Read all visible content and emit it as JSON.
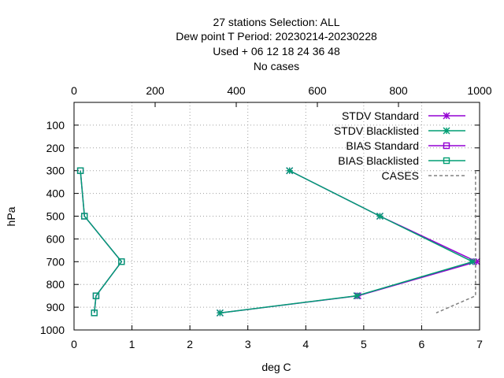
{
  "title_lines": [
    "27 stations Selection: ALL",
    "Dew point T  Period: 20230214-20230228",
    "Used   + 06 12 18 24 36 48",
    "No cases"
  ],
  "chart_data": {
    "type": "line",
    "xlabel": "deg C",
    "ylabel": "hPa",
    "xlim": [
      0,
      7
    ],
    "x2lim": [
      0,
      1000
    ],
    "ylim": [
      1000,
      0
    ],
    "x_ticks": [
      "0",
      "1",
      "2",
      "3",
      "4",
      "5",
      "6",
      "7"
    ],
    "x2_ticks": [
      "0",
      "200",
      "400",
      "600",
      "800",
      "1000"
    ],
    "y_ticks": [
      "100",
      "200",
      "300",
      "400",
      "500",
      "600",
      "700",
      "800",
      "900",
      "1000"
    ],
    "grid": true,
    "legend_position": "top-right",
    "series": [
      {
        "name": "STDV Standard",
        "color": "#9400d3",
        "marker": "x-star",
        "axis": "x1",
        "points": [
          [
            3.72,
            300
          ],
          [
            5.28,
            500
          ],
          [
            6.95,
            700
          ],
          [
            4.9,
            850
          ],
          [
            2.52,
            925
          ]
        ]
      },
      {
        "name": "STDV Blacklisted",
        "color": "#009e73",
        "marker": "x-star",
        "axis": "x1",
        "points": [
          [
            3.72,
            300
          ],
          [
            5.28,
            500
          ],
          [
            6.88,
            700
          ],
          [
            4.88,
            850
          ],
          [
            2.52,
            925
          ]
        ]
      },
      {
        "name": "BIAS Standard",
        "color": "#9400d3",
        "marker": "square",
        "axis": "x1",
        "points": [
          [
            0.11,
            300
          ],
          [
            0.18,
            500
          ],
          [
            0.82,
            700
          ],
          [
            0.38,
            850
          ],
          [
            0.35,
            925
          ]
        ]
      },
      {
        "name": "BIAS Blacklisted",
        "color": "#009e73",
        "marker": "square",
        "axis": "x1",
        "points": [
          [
            0.11,
            300
          ],
          [
            0.18,
            500
          ],
          [
            0.82,
            700
          ],
          [
            0.38,
            850
          ],
          [
            0.35,
            925
          ]
        ]
      },
      {
        "name": "CASES",
        "color": "#808080",
        "marker": "none",
        "dashed": true,
        "axis": "x2",
        "points": [
          [
            990,
            300
          ],
          [
            990,
            500
          ],
          [
            990,
            700
          ],
          [
            990,
            850
          ],
          [
            893,
            925
          ]
        ]
      }
    ]
  }
}
